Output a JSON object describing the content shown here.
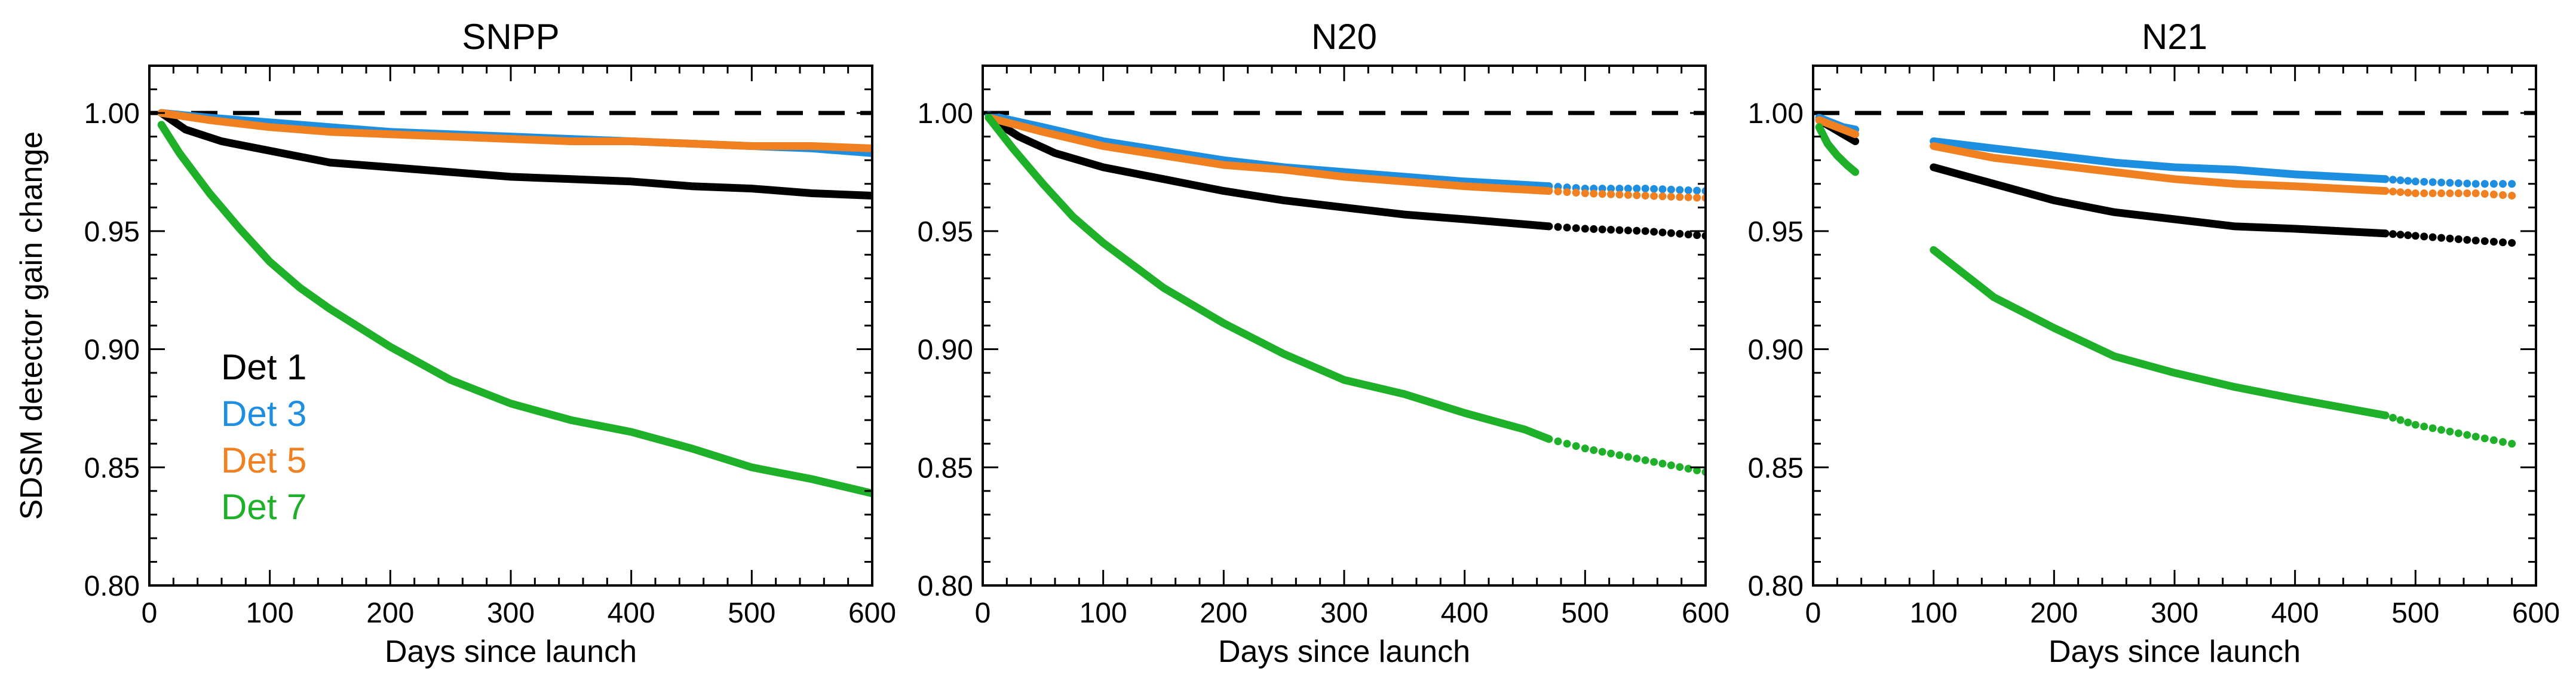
{
  "chart_data": [
    {
      "type": "scatter",
      "title": "SNPP",
      "xlabel": "Days since launch",
      "ylabel": "SDSM detector gain change",
      "xlim": [
        0,
        600
      ],
      "ylim": [
        0.8,
        1.02
      ],
      "xticks": [
        0,
        100,
        200,
        300,
        400,
        500,
        600
      ],
      "yticks": [
        0.8,
        0.85,
        0.9,
        0.95,
        1.0
      ],
      "reference_line": 1.0,
      "series": [
        {
          "name": "Det 1",
          "color": "#000000",
          "style": "solid",
          "x": [
            10,
            30,
            60,
            100,
            150,
            200,
            250,
            300,
            350,
            400,
            450,
            500,
            550,
            600
          ],
          "y": [
            1.0,
            0.993,
            0.988,
            0.984,
            0.979,
            0.977,
            0.975,
            0.973,
            0.972,
            0.971,
            0.969,
            0.968,
            0.966,
            0.965
          ]
        },
        {
          "name": "Det 3",
          "color": "#1e8fe0",
          "style": "solid",
          "x": [
            10,
            50,
            100,
            150,
            200,
            250,
            300,
            350,
            400,
            450,
            500,
            550,
            600
          ],
          "y": [
            1.0,
            0.998,
            0.996,
            0.994,
            0.992,
            0.991,
            0.99,
            0.989,
            0.988,
            0.987,
            0.986,
            0.985,
            0.983
          ]
        },
        {
          "name": "Det 5",
          "color": "#f08020",
          "style": "solid",
          "x": [
            10,
            50,
            100,
            150,
            200,
            250,
            300,
            350,
            400,
            450,
            500,
            550,
            600
          ],
          "y": [
            1.0,
            0.997,
            0.994,
            0.992,
            0.991,
            0.99,
            0.989,
            0.988,
            0.988,
            0.987,
            0.986,
            0.986,
            0.985
          ]
        },
        {
          "name": "Det 7",
          "color": "#1fb02a",
          "style": "solid",
          "x": [
            10,
            25,
            50,
            75,
            100,
            125,
            150,
            200,
            250,
            300,
            350,
            400,
            450,
            500,
            550,
            600
          ],
          "y": [
            0.995,
            0.983,
            0.966,
            0.951,
            0.937,
            0.926,
            0.917,
            0.901,
            0.887,
            0.877,
            0.87,
            0.865,
            0.858,
            0.85,
            0.845,
            0.839
          ]
        }
      ]
    },
    {
      "type": "scatter",
      "title": "N20",
      "xlabel": "Days since launch",
      "ylabel": "",
      "xlim": [
        0,
        600
      ],
      "ylim": [
        0.8,
        1.02
      ],
      "xticks": [
        0,
        100,
        200,
        300,
        400,
        500,
        600
      ],
      "yticks": [
        0.8,
        0.85,
        0.9,
        0.95,
        1.0
      ],
      "reference_line": 1.0,
      "series": [
        {
          "name": "Det 1",
          "color": "#000000",
          "style": "solid",
          "x": [
            5,
            30,
            60,
            100,
            150,
            200,
            250,
            300,
            350,
            400,
            470
          ],
          "y": [
            0.998,
            0.99,
            0.983,
            0.977,
            0.972,
            0.967,
            0.963,
            0.96,
            0.957,
            0.955,
            0.952
          ]
        },
        {
          "name": "Det 1",
          "color": "#000000",
          "style": "dotted",
          "x": [
            470,
            500,
            550,
            600
          ],
          "y": [
            0.952,
            0.951,
            0.95,
            0.948
          ]
        },
        {
          "name": "Det 3",
          "color": "#1e8fe0",
          "style": "solid",
          "x": [
            5,
            50,
            100,
            150,
            200,
            250,
            300,
            350,
            400,
            470
          ],
          "y": [
            0.999,
            0.994,
            0.988,
            0.984,
            0.98,
            0.977,
            0.975,
            0.973,
            0.971,
            0.969
          ]
        },
        {
          "name": "Det 3",
          "color": "#1e8fe0",
          "style": "dotted",
          "x": [
            470,
            500,
            550,
            600
          ],
          "y": [
            0.969,
            0.968,
            0.968,
            0.967
          ]
        },
        {
          "name": "Det 5",
          "color": "#f08020",
          "style": "solid",
          "x": [
            5,
            50,
            100,
            150,
            200,
            250,
            300,
            350,
            400,
            470
          ],
          "y": [
            0.998,
            0.992,
            0.986,
            0.982,
            0.978,
            0.976,
            0.973,
            0.971,
            0.969,
            0.967
          ]
        },
        {
          "name": "Det 5",
          "color": "#f08020",
          "style": "dotted",
          "x": [
            470,
            500,
            550,
            600
          ],
          "y": [
            0.967,
            0.966,
            0.965,
            0.964
          ]
        },
        {
          "name": "Det 7",
          "color": "#1fb02a",
          "style": "solid",
          "x": [
            5,
            25,
            50,
            75,
            100,
            150,
            200,
            250,
            300,
            350,
            400,
            450,
            470
          ],
          "y": [
            0.998,
            0.985,
            0.97,
            0.956,
            0.945,
            0.926,
            0.911,
            0.898,
            0.887,
            0.881,
            0.873,
            0.866,
            0.862
          ]
        },
        {
          "name": "Det 7",
          "color": "#1fb02a",
          "style": "dotted",
          "x": [
            470,
            500,
            550,
            600
          ],
          "y": [
            0.862,
            0.858,
            0.853,
            0.848
          ]
        }
      ]
    },
    {
      "type": "scatter",
      "title": "N21",
      "xlabel": "Days since launch",
      "ylabel": "",
      "xlim": [
        0,
        600
      ],
      "ylim": [
        0.8,
        1.02
      ],
      "xticks": [
        0,
        100,
        200,
        300,
        400,
        500,
        600
      ],
      "yticks": [
        0.8,
        0.85,
        0.9,
        0.95,
        1.0
      ],
      "reference_line": 1.0,
      "series": [
        {
          "name": "Det 1",
          "color": "#000000",
          "style": "solid",
          "x": [
            5,
            15,
            25,
            35,
            85,
            100,
            150,
            200,
            250,
            300,
            350,
            400,
            475
          ],
          "y": [
            0.997,
            0.994,
            0.991,
            0.988,
            null,
            0.977,
            0.97,
            0.963,
            0.958,
            0.955,
            0.952,
            0.951,
            0.949
          ]
        },
        {
          "name": "Det 1",
          "color": "#000000",
          "style": "dotted",
          "x": [
            475,
            500,
            550,
            580
          ],
          "y": [
            0.949,
            0.948,
            0.946,
            0.945
          ]
        },
        {
          "name": "Det 3",
          "color": "#1e8fe0",
          "style": "solid",
          "x": [
            5,
            15,
            25,
            35,
            85,
            100,
            150,
            200,
            250,
            300,
            350,
            400,
            475
          ],
          "y": [
            0.998,
            0.996,
            0.994,
            0.993,
            null,
            0.988,
            0.985,
            0.982,
            0.979,
            0.977,
            0.976,
            0.974,
            0.972
          ]
        },
        {
          "name": "Det 3",
          "color": "#1e8fe0",
          "style": "dotted",
          "x": [
            475,
            500,
            550,
            580
          ],
          "y": [
            0.972,
            0.971,
            0.97,
            0.97
          ]
        },
        {
          "name": "Det 5",
          "color": "#f08020",
          "style": "solid",
          "x": [
            5,
            15,
            25,
            35,
            85,
            100,
            150,
            200,
            250,
            300,
            350,
            400,
            475
          ],
          "y": [
            0.997,
            0.995,
            0.993,
            0.991,
            null,
            0.986,
            0.981,
            0.978,
            0.975,
            0.972,
            0.97,
            0.969,
            0.967
          ]
        },
        {
          "name": "Det 5",
          "color": "#f08020",
          "style": "dotted",
          "x": [
            475,
            500,
            550,
            580
          ],
          "y": [
            0.967,
            0.966,
            0.966,
            0.965
          ]
        },
        {
          "name": "Det 7",
          "color": "#1fb02a",
          "style": "solid",
          "x": [
            5,
            12,
            20,
            28,
            35,
            85,
            100,
            150,
            200,
            250,
            300,
            350,
            400,
            475
          ],
          "y": [
            0.994,
            0.987,
            0.982,
            0.978,
            0.975,
            null,
            0.942,
            0.922,
            0.909,
            0.897,
            0.89,
            0.884,
            0.879,
            0.872
          ]
        },
        {
          "name": "Det 7",
          "color": "#1fb02a",
          "style": "dotted",
          "x": [
            475,
            500,
            550,
            580
          ],
          "y": [
            0.872,
            0.868,
            0.863,
            0.86
          ]
        }
      ]
    }
  ],
  "legend": {
    "entries": [
      {
        "label": "Det 1",
        "color": "#000000"
      },
      {
        "label": "Det 3",
        "color": "#1e8fe0"
      },
      {
        "label": "Det 5",
        "color": "#f08020"
      },
      {
        "label": "Det 7",
        "color": "#1fb02a"
      }
    ],
    "placement": "lower-left of first panel"
  }
}
